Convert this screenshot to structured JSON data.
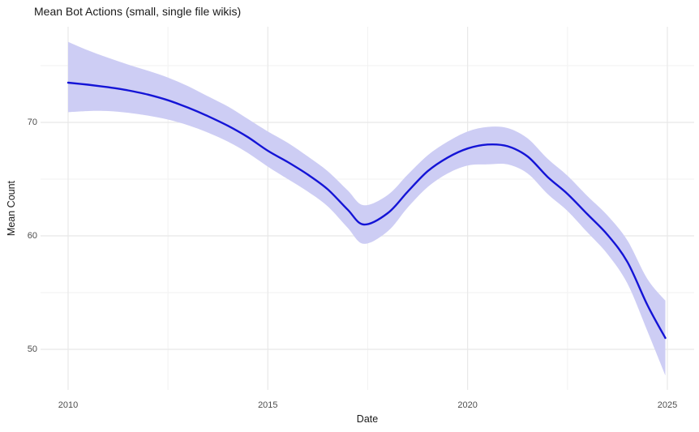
{
  "title": "Mean Bot Actions (small, single file wikis)",
  "chart_data": {
    "type": "line",
    "title": "Mean Bot Actions (small, single file wikis)",
    "xlabel": "Date",
    "ylabel": "Mean Count",
    "x_ticks": [
      2010,
      2015,
      2020,
      2025
    ],
    "x_minor_ticks": [
      2012.5,
      2017.5,
      2022.5
    ],
    "y_ticks": [
      50,
      60,
      70
    ],
    "y_minor_ticks": [
      55,
      65,
      75
    ],
    "x_range": [
      2009.31,
      2025.67
    ],
    "y_range": [
      46.43,
      78.43
    ],
    "grid": "major+minor, no axis lines (ggplot minimal theme)",
    "legend": false,
    "series": [
      {
        "name": "smoothed mean bot actions with confidence band",
        "line_color": "#1414d6",
        "band_color": "#cdcdf4",
        "points": [
          {
            "x": 2010.0,
            "y": 73.5,
            "lo": 70.9,
            "hi": 77.1
          },
          {
            "x": 2010.5,
            "y": 73.32,
            "lo": 71.0,
            "hi": 76.35
          },
          {
            "x": 2011.0,
            "y": 73.1,
            "lo": 71.0,
            "hi": 75.7
          },
          {
            "x": 2011.5,
            "y": 72.82,
            "lo": 70.85,
            "hi": 75.1
          },
          {
            "x": 2012.0,
            "y": 72.45,
            "lo": 70.6,
            "hi": 74.55
          },
          {
            "x": 2012.5,
            "y": 71.95,
            "lo": 70.25,
            "hi": 73.95
          },
          {
            "x": 2013.0,
            "y": 71.3,
            "lo": 69.75,
            "hi": 73.2
          },
          {
            "x": 2013.5,
            "y": 70.55,
            "lo": 69.1,
            "hi": 72.3
          },
          {
            "x": 2014.0,
            "y": 69.7,
            "lo": 68.3,
            "hi": 71.4
          },
          {
            "x": 2014.5,
            "y": 68.7,
            "lo": 67.3,
            "hi": 70.3
          },
          {
            "x": 2015.0,
            "y": 67.5,
            "lo": 66.1,
            "hi": 69.2
          },
          {
            "x": 2015.5,
            "y": 66.5,
            "lo": 65.0,
            "hi": 68.2
          },
          {
            "x": 2016.0,
            "y": 65.4,
            "lo": 63.9,
            "hi": 67.0
          },
          {
            "x": 2016.5,
            "y": 64.1,
            "lo": 62.6,
            "hi": 65.7
          },
          {
            "x": 2017.0,
            "y": 62.3,
            "lo": 60.7,
            "hi": 64.0
          },
          {
            "x": 2017.4,
            "y": 61.0,
            "lo": 59.3,
            "hi": 62.7
          },
          {
            "x": 2018.0,
            "y": 62.0,
            "lo": 60.4,
            "hi": 63.6
          },
          {
            "x": 2018.5,
            "y": 63.9,
            "lo": 62.5,
            "hi": 65.4
          },
          {
            "x": 2019.0,
            "y": 65.7,
            "lo": 64.3,
            "hi": 67.1
          },
          {
            "x": 2019.5,
            "y": 66.9,
            "lo": 65.5,
            "hi": 68.3
          },
          {
            "x": 2020.0,
            "y": 67.7,
            "lo": 66.2,
            "hi": 69.2
          },
          {
            "x": 2020.5,
            "y": 68.05,
            "lo": 66.3,
            "hi": 69.6
          },
          {
            "x": 2021.0,
            "y": 67.9,
            "lo": 66.3,
            "hi": 69.5
          },
          {
            "x": 2021.5,
            "y": 67.0,
            "lo": 65.5,
            "hi": 68.6
          },
          {
            "x": 2022.0,
            "y": 65.2,
            "lo": 63.7,
            "hi": 66.8
          },
          {
            "x": 2022.5,
            "y": 63.7,
            "lo": 62.2,
            "hi": 65.3
          },
          {
            "x": 2023.0,
            "y": 61.9,
            "lo": 60.3,
            "hi": 63.5
          },
          {
            "x": 2023.5,
            "y": 60.1,
            "lo": 58.4,
            "hi": 61.8
          },
          {
            "x": 2024.0,
            "y": 57.7,
            "lo": 55.8,
            "hi": 59.6
          },
          {
            "x": 2024.5,
            "y": 53.9,
            "lo": 51.6,
            "hi": 56.2
          },
          {
            "x": 2024.95,
            "y": 51.0,
            "lo": 47.7,
            "hi": 54.3
          }
        ]
      }
    ],
    "colors": {
      "background": "#ffffff",
      "major_gridline": "#e8e8e8",
      "minor_gridline": "#f2f2f2",
      "title_text": "#1a1a1a",
      "axis_title_text": "#1a1a1a",
      "tick_text": "#4d4d4d",
      "line": "#1414d6",
      "ribbon": "#cdcdf4"
    }
  }
}
